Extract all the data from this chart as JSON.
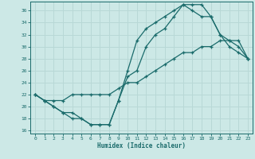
{
  "xlabel": "Humidex (Indice chaleur)",
  "bg_color": "#cce8e6",
  "line_color": "#1a6b6b",
  "grid_color": "#b8d8d6",
  "xlim": [
    -0.5,
    23.5
  ],
  "ylim": [
    15.5,
    37.5
  ],
  "xticks": [
    0,
    1,
    2,
    3,
    4,
    5,
    6,
    7,
    8,
    9,
    10,
    11,
    12,
    13,
    14,
    15,
    16,
    17,
    18,
    19,
    20,
    21,
    22,
    23
  ],
  "yticks": [
    16,
    18,
    20,
    22,
    24,
    26,
    28,
    30,
    32,
    34,
    36
  ],
  "line1_x": [
    0,
    1,
    2,
    3,
    4,
    5,
    6,
    7,
    8,
    9,
    10,
    11,
    12,
    13,
    14,
    15,
    16,
    17,
    18,
    19,
    20,
    21,
    22,
    23
  ],
  "line1_y": [
    22,
    21,
    20,
    19,
    19,
    18,
    17,
    17,
    17,
    21,
    25,
    26,
    30,
    32,
    33,
    35,
    37,
    37,
    37,
    35,
    32,
    31,
    30,
    28
  ],
  "line2_x": [
    0,
    1,
    2,
    3,
    4,
    5,
    6,
    7,
    8,
    9,
    10,
    11,
    12,
    13,
    14,
    15,
    16,
    17,
    18,
    19,
    20,
    21,
    22,
    23
  ],
  "line2_y": [
    22,
    21,
    20,
    19,
    18,
    18,
    17,
    17,
    17,
    21,
    26,
    31,
    33,
    34,
    35,
    36,
    37,
    36,
    35,
    35,
    32,
    30,
    29,
    28
  ],
  "line3_x": [
    0,
    1,
    2,
    3,
    4,
    5,
    6,
    7,
    8,
    9,
    10,
    11,
    12,
    13,
    14,
    15,
    16,
    17,
    18,
    19,
    20,
    21,
    22,
    23
  ],
  "line3_y": [
    22,
    21,
    21,
    21,
    22,
    22,
    22,
    22,
    22,
    23,
    24,
    24,
    25,
    26,
    27,
    28,
    29,
    29,
    30,
    30,
    31,
    31,
    31,
    28
  ]
}
